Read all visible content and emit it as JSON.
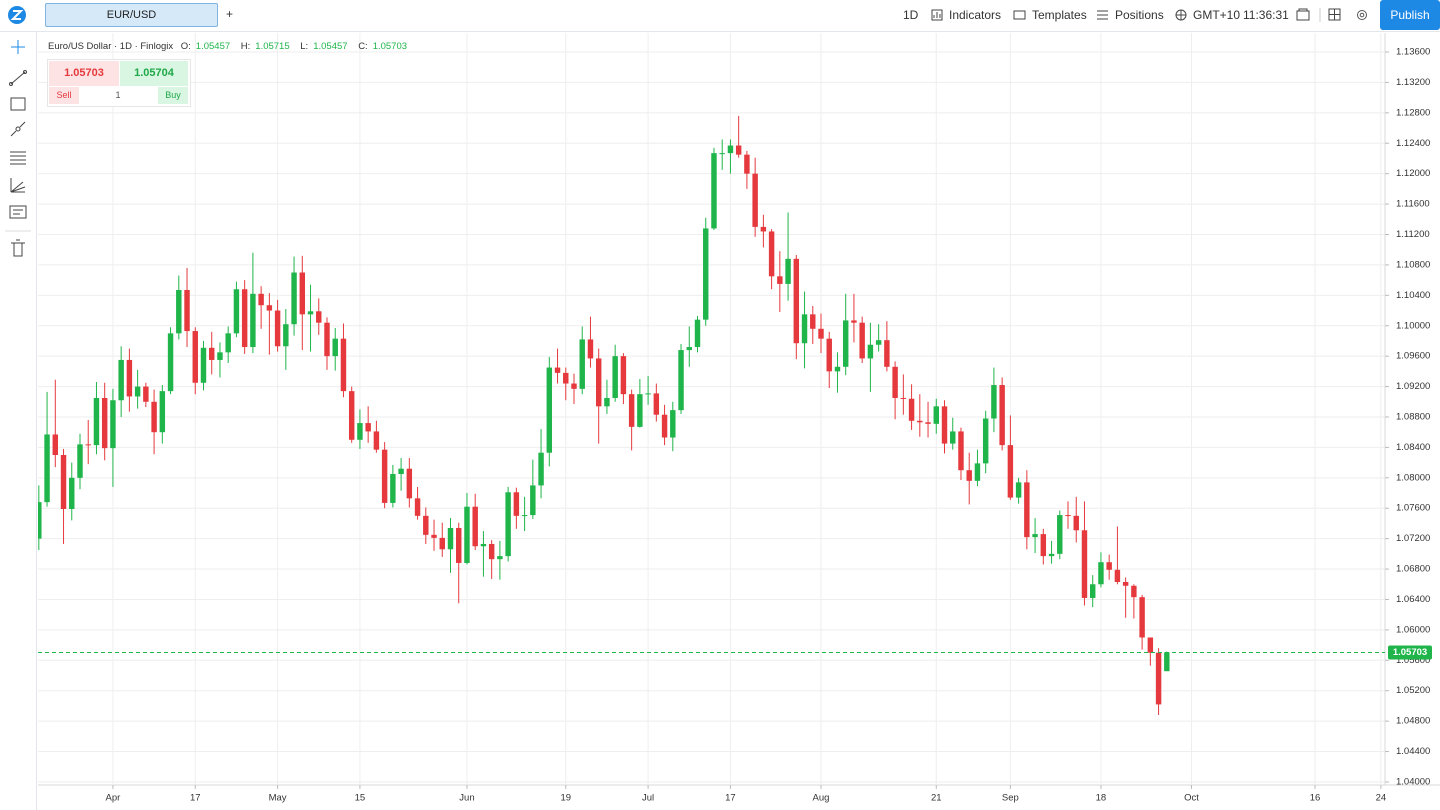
{
  "top_bar": {
    "tab": "EUR/USD",
    "add_tab": "+",
    "interval": "1D",
    "indicators": "Indicators",
    "templates": "Templates",
    "positions": "Positions",
    "timezone": "GMT+10",
    "clock": "11:36:31",
    "publish": "Publish"
  },
  "trade_widget": {
    "sell_price": 1.05703,
    "buy_price": 1.05704,
    "sell": "Sell",
    "quantity": 1,
    "buy": "Buy"
  },
  "chart_data": {
    "type": "candlestick",
    "title": "Euro/US Dollar · 1D · Finlogix",
    "ohlc_labels": {
      "open": "O:",
      "high": "H:",
      "low": "L:",
      "close": "C:"
    },
    "last_ohlc": {
      "open": 1.05457,
      "high": 1.05715,
      "low": 1.05457,
      "close": 1.05703
    },
    "last_price": 1.05703,
    "up_color": "#1fb54a",
    "down_color": "#e5393d",
    "grid": true,
    "open": [
      1.072,
      1.0768,
      1.0857,
      1.083,
      1.0759,
      1.08,
      1.0844,
      1.0843,
      1.0905,
      1.0839,
      1.0902,
      1.0955,
      1.0907,
      1.092,
      1.09,
      1.086,
      1.0914,
      1.099,
      1.1047,
      1.0993,
      1.0925,
      1.0971,
      1.0955,
      1.0965,
      1.099,
      1.1048,
      1.0972,
      1.1042,
      1.1027,
      1.102,
      1.0973,
      1.1002,
      1.107,
      1.1015,
      1.1019,
      1.1004,
      1.096,
      1.0983,
      1.0914,
      1.085,
      1.0872,
      1.0861,
      1.0837,
      1.0767,
      1.0805,
      1.0812,
      1.0773,
      1.075,
      1.0725,
      1.0721,
      1.0706,
      1.0734,
      1.0688,
      1.0762,
      1.071,
      1.0713,
      1.0693,
      1.0697,
      1.0781,
      1.075,
      1.0751,
      1.079,
      1.0833,
      1.0945,
      1.0938,
      1.0924,
      1.0917,
      1.0982,
      1.0957,
      1.0894,
      1.0905,
      1.096,
      1.091,
      1.0867,
      1.091,
      1.0911,
      1.0883,
      1.0853,
      1.0889,
      1.0968,
      1.0972,
      1.1008,
      1.1128,
      1.1227,
      1.1227,
      1.1237,
      1.1225,
      1.12,
      1.113,
      1.1124,
      1.1065,
      1.1055,
      1.1088,
      1.0977,
      1.1015,
      1.0996,
      1.0983,
      1.094,
      1.0946,
      1.1007,
      1.1004,
      1.0957,
      1.0975,
      1.0981,
      1.0946,
      1.0905,
      1.0904,
      1.0875,
      1.0873,
      1.0871,
      1.0894,
      1.0845,
      1.0861,
      1.081,
      1.0796,
      1.0819,
      1.0878,
      1.0922,
      1.0843,
      1.0774,
      1.0794,
      1.0722,
      1.0726,
      1.0697,
      1.07,
      1.0751,
      1.075,
      1.0731,
      1.0642,
      1.066,
      1.0689,
      1.0679,
      1.0663,
      1.0658,
      1.0643,
      1.059,
      1.057,
      1.05457
    ],
    "high": [
      1.079,
      1.0913,
      1.0929,
      1.0838,
      1.082,
      1.0858,
      1.0876,
      1.0926,
      1.0925,
      1.0917,
      1.0973,
      1.097,
      1.0942,
      1.0925,
      1.0916,
      1.0922,
      1.0998,
      1.1066,
      1.1076,
      1.0998,
      1.098,
      1.0992,
      1.0978,
      1.0999,
      1.1058,
      1.106,
      1.1096,
      1.1052,
      1.1043,
      1.1034,
      1.1022,
      1.1091,
      1.1092,
      1.1054,
      1.1036,
      1.1011,
      1.0997,
      1.1003,
      1.092,
      1.089,
      1.0894,
      1.0875,
      1.0847,
      1.0817,
      1.0826,
      1.0826,
      1.0788,
      1.0761,
      1.0745,
      1.0741,
      1.0747,
      1.0741,
      1.078,
      1.0779,
      1.073,
      1.0718,
      1.0717,
      1.0788,
      1.0787,
      1.0775,
      1.0824,
      1.0864,
      1.0959,
      1.097,
      1.0945,
      1.0937,
      1.0999,
      1.1012,
      1.097,
      1.0929,
      1.0975,
      1.0964,
      1.0916,
      1.093,
      1.0934,
      1.0924,
      1.0896,
      1.09,
      1.0976,
      1.0999,
      1.1013,
      1.1142,
      1.1234,
      1.1245,
      1.1245,
      1.1276,
      1.123,
      1.1221,
      1.1146,
      1.1127,
      1.1098,
      1.1149,
      1.1093,
      1.1045,
      1.1026,
      1.1016,
      1.0992,
      1.0965,
      1.1042,
      1.1042,
      1.1012,
      1.1004,
      1.1002,
      1.1006,
      1.0953,
      1.0936,
      1.0923,
      1.091,
      1.09,
      1.0904,
      1.0902,
      1.0879,
      1.0866,
      1.0833,
      1.0837,
      1.0888,
      1.0945,
      1.0932,
      1.0882,
      1.08,
      1.081,
      1.0747,
      1.0733,
      1.0717,
      1.0757,
      1.0769,
      1.0775,
      1.0769,
      1.0672,
      1.0702,
      1.0699,
      1.0736,
      1.0669,
      1.066,
      1.0646,
      1.059,
      1.0576,
      1.05715
    ],
    "low": [
      1.0705,
      1.0762,
      1.0814,
      1.0713,
      1.0744,
      1.0785,
      1.0818,
      1.0831,
      1.0823,
      1.0788,
      1.088,
      1.0887,
      1.0891,
      1.0893,
      1.0831,
      1.0845,
      1.091,
      1.0982,
      1.0972,
      1.091,
      1.0915,
      1.0936,
      1.0932,
      1.0951,
      1.0985,
      1.0963,
      1.0964,
      1.0996,
      1.0962,
      1.0966,
      1.0942,
      1.0987,
      1.0968,
      1.0966,
      1.0988,
      1.0942,
      1.0941,
      1.0906,
      1.0846,
      1.0838,
      1.0846,
      1.0833,
      1.076,
      1.0761,
      1.0783,
      1.0761,
      1.0745,
      1.0713,
      1.0704,
      1.0696,
      1.0675,
      1.0635,
      1.0686,
      1.0705,
      1.067,
      1.0667,
      1.0666,
      1.069,
      1.0733,
      1.073,
      1.0746,
      1.0773,
      1.0815,
      1.0924,
      1.0902,
      1.0897,
      1.091,
      1.0945,
      1.0845,
      1.0884,
      1.09,
      1.0897,
      1.0836,
      1.0866,
      1.0896,
      1.0874,
      1.0843,
      1.0835,
      1.0884,
      1.0946,
      1.0965,
      1.1,
      1.1126,
      1.1205,
      1.12,
      1.1221,
      1.118,
      1.1117,
      1.1103,
      1.1048,
      1.1018,
      1.1033,
      1.0956,
      1.0944,
      1.0976,
      1.0964,
      1.0918,
      1.0912,
      1.0935,
      1.0978,
      1.0951,
      1.0913,
      1.0966,
      1.094,
      1.0877,
      1.0883,
      1.0863,
      1.0854,
      1.0853,
      1.0858,
      1.0832,
      1.0837,
      1.0797,
      1.0765,
      1.0789,
      1.0806,
      1.086,
      1.0836,
      1.0771,
      1.0766,
      1.0706,
      1.0701,
      1.0686,
      1.0687,
      1.0693,
      1.0733,
      1.0715,
      1.0632,
      1.063,
      1.0656,
      1.0666,
      1.066,
      1.0616,
      1.0615,
      1.0574,
      1.0553,
      1.0488,
      1.05457
    ],
    "close": [
      1.0768,
      1.0857,
      1.083,
      1.0759,
      1.08,
      1.0844,
      1.0843,
      1.0905,
      1.0839,
      1.0902,
      1.0955,
      1.0907,
      1.092,
      1.09,
      1.086,
      1.0914,
      1.099,
      1.1047,
      1.0993,
      1.0925,
      1.0971,
      1.0955,
      1.0965,
      1.099,
      1.1048,
      1.0972,
      1.1042,
      1.1027,
      1.102,
      1.0973,
      1.1002,
      1.107,
      1.1015,
      1.1019,
      1.1004,
      1.096,
      1.0983,
      1.0914,
      1.085,
      1.0872,
      1.0861,
      1.0837,
      1.0767,
      1.0805,
      1.0812,
      1.0773,
      1.075,
      1.0725,
      1.0721,
      1.0706,
      1.0734,
      1.0688,
      1.0762,
      1.071,
      1.0713,
      1.0693,
      1.0697,
      1.0781,
      1.075,
      1.0751,
      1.079,
      1.0833,
      1.0945,
      1.0938,
      1.0924,
      1.0917,
      1.0982,
      1.0957,
      1.0894,
      1.0905,
      1.096,
      1.091,
      1.0867,
      1.091,
      1.0911,
      1.0883,
      1.0853,
      1.0889,
      1.0968,
      1.0972,
      1.1008,
      1.1128,
      1.1227,
      1.1227,
      1.1237,
      1.1225,
      1.12,
      1.113,
      1.1124,
      1.1065,
      1.1055,
      1.1088,
      1.0977,
      1.1015,
      1.0996,
      1.0983,
      1.094,
      1.0946,
      1.1007,
      1.1004,
      1.0957,
      1.0975,
      1.0981,
      1.0946,
      1.0905,
      1.0904,
      1.0875,
      1.0873,
      1.0871,
      1.0894,
      1.0845,
      1.0861,
      1.081,
      1.0796,
      1.0819,
      1.0878,
      1.0922,
      1.0843,
      1.0774,
      1.0794,
      1.0722,
      1.0726,
      1.0697,
      1.07,
      1.0751,
      1.075,
      1.0731,
      1.0642,
      1.066,
      1.0689,
      1.0679,
      1.0663,
      1.0658,
      1.0643,
      1.059,
      1.057,
      1.0502,
      1.05703
    ],
    "ylim": [
      1.0396,
      1.1385
    ],
    "yticks": [
      {
        "value": 1.04,
        "label": "1.04000"
      },
      {
        "value": 1.044,
        "label": "1.04400"
      },
      {
        "value": 1.048,
        "label": "1.04800"
      },
      {
        "value": 1.052,
        "label": "1.05200"
      },
      {
        "value": 1.056,
        "label": "1.05600"
      },
      {
        "value": 1.06,
        "label": "1.06000"
      },
      {
        "value": 1.064,
        "label": "1.06400"
      },
      {
        "value": 1.068,
        "label": "1.06800"
      },
      {
        "value": 1.072,
        "label": "1.07200"
      },
      {
        "value": 1.076,
        "label": "1.07600"
      },
      {
        "value": 1.08,
        "label": "1.08000"
      },
      {
        "value": 1.084,
        "label": "1.08400"
      },
      {
        "value": 1.088,
        "label": "1.08800"
      },
      {
        "value": 1.092,
        "label": "1.09200"
      },
      {
        "value": 1.096,
        "label": "1.09600"
      },
      {
        "value": 1.1,
        "label": "1.10000"
      },
      {
        "value": 1.104,
        "label": "1.10400"
      },
      {
        "value": 1.108,
        "label": "1.10800"
      },
      {
        "value": 1.112,
        "label": "1.11200"
      },
      {
        "value": 1.116,
        "label": "1.11600"
      },
      {
        "value": 1.12,
        "label": "1.12000"
      },
      {
        "value": 1.124,
        "label": "1.12400"
      },
      {
        "value": 1.128,
        "label": "1.12800"
      },
      {
        "value": 1.132,
        "label": "1.13200"
      },
      {
        "value": 1.136,
        "label": "1.13600"
      }
    ],
    "xlim": [
      -0.1,
      163.5
    ],
    "xticks": [
      {
        "value": 9,
        "label": "Apr"
      },
      {
        "value": 19,
        "label": "17"
      },
      {
        "value": 29,
        "label": "May"
      },
      {
        "value": 39,
        "label": "15"
      },
      {
        "value": 52,
        "label": "Jun"
      },
      {
        "value": 64,
        "label": "19"
      },
      {
        "value": 74,
        "label": "Jul"
      },
      {
        "value": 84,
        "label": "17"
      },
      {
        "value": 95,
        "label": "Aug"
      },
      {
        "value": 109,
        "label": "21"
      },
      {
        "value": 118,
        "label": "Sep"
      },
      {
        "value": 129,
        "label": "18"
      },
      {
        "value": 140,
        "label": "Oct"
      },
      {
        "value": 155,
        "label": "16"
      },
      {
        "value": 163,
        "label": "24"
      }
    ]
  }
}
